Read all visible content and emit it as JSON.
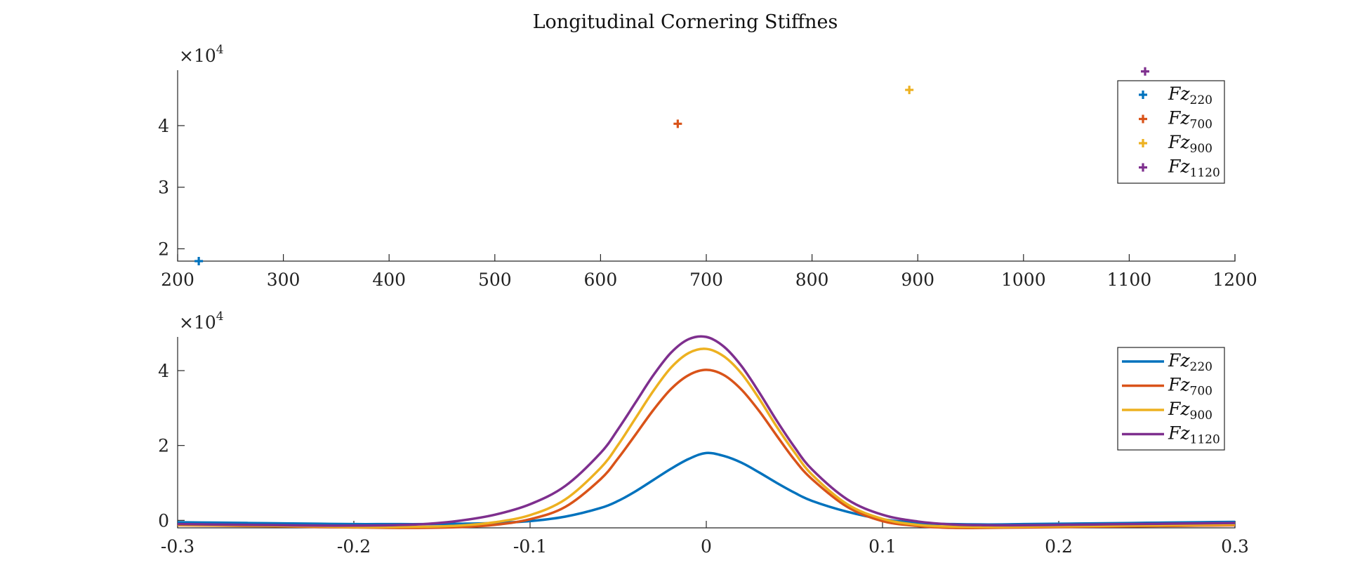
{
  "chart_data": [
    {
      "type": "scatter",
      "title": "Longitudinal Cornering Stiffnes",
      "xlim": [
        200,
        1200
      ],
      "ylim": [
        18000,
        49000
      ],
      "x_ticks": [
        "200",
        "300",
        "400",
        "500",
        "600",
        "700",
        "800",
        "900",
        "1000",
        "1100",
        "1200"
      ],
      "y_ticks": [
        "2",
        "3",
        "4"
      ],
      "y_exponent_label": "×10",
      "y_exponent_power": "4",
      "grid": false,
      "legend_placement": "top-right",
      "marker": "plus",
      "series": [
        {
          "name": "Fz",
          "sub": "220",
          "color": "#0072BD",
          "x": [
            220
          ],
          "y": [
            18000
          ]
        },
        {
          "name": "Fz",
          "sub": "700",
          "color": "#D95319",
          "x": [
            673
          ],
          "y": [
            40300
          ]
        },
        {
          "name": "Fz",
          "sub": "900",
          "color": "#EDB120",
          "x": [
            892
          ],
          "y": [
            45800
          ]
        },
        {
          "name": "Fz",
          "sub": "1120",
          "color": "#7E2F8E",
          "x": [
            1115
          ],
          "y": [
            48800
          ]
        }
      ]
    },
    {
      "type": "line",
      "title": "",
      "xlim": [
        -0.3,
        0.3
      ],
      "ylim": [
        -2000,
        49000
      ],
      "x_ticks": [
        "-0.3",
        "-0.2",
        "-0.1",
        "0",
        "0.1",
        "0.2",
        "0.3"
      ],
      "y_ticks": [
        "0",
        "2",
        "4"
      ],
      "y_exponent_label": "×10",
      "y_exponent_power": "4",
      "grid": false,
      "legend_placement": "top-right",
      "x": [
        -0.3,
        -0.28,
        -0.26,
        -0.24,
        -0.22,
        -0.2,
        -0.18,
        -0.16,
        -0.14,
        -0.12,
        -0.1,
        -0.08,
        -0.06,
        -0.05,
        -0.04,
        -0.03,
        -0.02,
        -0.01,
        0,
        0.01,
        0.02,
        0.03,
        0.04,
        0.05,
        0.06,
        0.08,
        0.1,
        0.12,
        0.14,
        0.16,
        0.18,
        0.2,
        0.22,
        0.24,
        0.26,
        0.28,
        0.3
      ],
      "series": [
        {
          "name": "Fz",
          "sub": "220",
          "color": "#0072BD",
          "values": [
            -500,
            -600,
            -700,
            -800,
            -900,
            -1000,
            -1000,
            -1000,
            -900,
            -700,
            -200,
            1000,
            3300,
            5200,
            7800,
            10800,
            13800,
            16400,
            18000,
            17200,
            15400,
            12800,
            10000,
            7400,
            5200,
            2300,
            300,
            -700,
            -1000,
            -1100,
            -1000,
            -900,
            -800,
            -700,
            -600,
            -500,
            -400
          ]
        },
        {
          "name": "Fz",
          "sub": "700",
          "color": "#D95319",
          "values": [
            -1300,
            -1400,
            -1500,
            -1600,
            -1800,
            -1900,
            -2000,
            -2000,
            -1800,
            -1200,
            300,
            3600,
            11000,
            16600,
            23000,
            29500,
            35100,
            38800,
            40200,
            38800,
            34900,
            29200,
            22600,
            16200,
            11000,
            3600,
            -200,
            -1500,
            -2000,
            -2000,
            -1900,
            -1800,
            -1700,
            -1600,
            -1500,
            -1400,
            -1300
          ]
        },
        {
          "name": "Fz",
          "sub": "900",
          "color": "#EDB120",
          "values": [
            -1200,
            -1300,
            -1400,
            -1500,
            -1600,
            -1800,
            -1800,
            -1700,
            -1400,
            -500,
            1400,
            5600,
            14000,
            20200,
            27400,
            34600,
            40800,
            44700,
            45800,
            43800,
            39200,
            32500,
            25000,
            18200,
            12200,
            4300,
            400,
            -1200,
            -1700,
            -1800,
            -1700,
            -1600,
            -1500,
            -1400,
            -1300,
            -1200,
            -1100
          ]
        },
        {
          "name": "Fz",
          "sub": "1120",
          "color": "#7E2F8E",
          "values": [
            -1000,
            -1100,
            -1200,
            -1300,
            -1400,
            -1400,
            -1300,
            -1000,
            -100,
            1500,
            4300,
            9200,
            18000,
            24400,
            31600,
            38800,
            44800,
            48400,
            49000,
            46400,
            41200,
            34200,
            26600,
            19600,
            13600,
            5600,
            1500,
            -300,
            -1100,
            -1300,
            -1300,
            -1200,
            -1100,
            -1000,
            -900,
            -800,
            -700
          ]
        }
      ]
    }
  ]
}
